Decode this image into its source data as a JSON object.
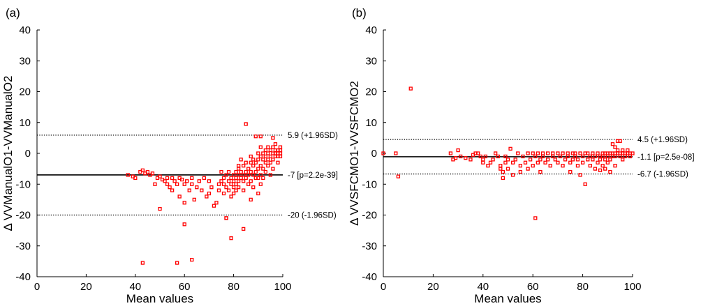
{
  "chart_data": [
    {
      "type": "scatter",
      "panel_label": "(a)",
      "xlabel": "Mean values",
      "ylabel": "Δ VVManualO1-VVManualO2",
      "xlim": [
        0,
        100
      ],
      "ylim": [
        -40,
        40
      ],
      "xticks": [
        "0",
        "20",
        "40",
        "60",
        "80",
        "100"
      ],
      "yticks": [
        "40",
        "30",
        "20",
        "10",
        "0",
        "-10",
        "-20",
        "-30",
        "-40"
      ],
      "grid": false,
      "marker_color": "#ff0000",
      "reference_lines": [
        {
          "label": "5.9 (+1.96SD)",
          "y": 5.9,
          "style": "dotted"
        },
        {
          "label": "-7 [p=2.2e-39]",
          "y": -7.0,
          "style": "solid"
        },
        {
          "label": "-20 (-1.96SD)",
          "y": -20.0,
          "style": "dotted"
        }
      ],
      "points": [
        [
          37,
          -7
        ],
        [
          39,
          -7.5
        ],
        [
          40,
          -8
        ],
        [
          42,
          -6
        ],
        [
          43,
          -5.5
        ],
        [
          44,
          -6.5
        ],
        [
          45,
          -6
        ],
        [
          46,
          -7
        ],
        [
          47,
          -6.5
        ],
        [
          48,
          -10
        ],
        [
          49,
          -8
        ],
        [
          50,
          -7.5
        ],
        [
          50,
          -18
        ],
        [
          51,
          -8.5
        ],
        [
          52,
          -9
        ],
        [
          53,
          -8
        ],
        [
          53,
          -10
        ],
        [
          54,
          -11
        ],
        [
          55,
          -8
        ],
        [
          55,
          -12
        ],
        [
          56,
          -9
        ],
        [
          57,
          -10
        ],
        [
          58,
          -8
        ],
        [
          58,
          -14
        ],
        [
          59,
          -8.5
        ],
        [
          60,
          -10
        ],
        [
          60,
          -16
        ],
        [
          61,
          -9
        ],
        [
          62,
          -12
        ],
        [
          63,
          -8
        ],
        [
          63,
          -10
        ],
        [
          64,
          -15
        ],
        [
          65,
          -11
        ],
        [
          66,
          -9
        ],
        [
          67,
          -12
        ],
        [
          68,
          -8
        ],
        [
          69,
          -14
        ],
        [
          70,
          -13
        ],
        [
          70,
          -9
        ],
        [
          71,
          -11
        ],
        [
          72,
          -17
        ],
        [
          73,
          -16
        ],
        [
          74,
          -10
        ],
        [
          74,
          -12
        ],
        [
          75,
          -6
        ],
        [
          75,
          -9
        ],
        [
          76,
          -8
        ],
        [
          76,
          -10
        ],
        [
          76,
          -13
        ],
        [
          77,
          -7
        ],
        [
          77,
          -11
        ],
        [
          77,
          -21
        ],
        [
          78,
          -9
        ],
        [
          78,
          -12
        ],
        [
          78,
          -6
        ],
        [
          79,
          -8
        ],
        [
          79,
          -10
        ],
        [
          79,
          -14
        ],
        [
          80,
          -7
        ],
        [
          80,
          -9
        ],
        [
          80,
          -11
        ],
        [
          80,
          -13
        ],
        [
          81,
          -6
        ],
        [
          81,
          -8
        ],
        [
          81,
          -10
        ],
        [
          81,
          -12
        ],
        [
          82,
          -5
        ],
        [
          82,
          -7
        ],
        [
          82,
          -9
        ],
        [
          82,
          -4
        ],
        [
          82,
          -11
        ],
        [
          83,
          -6
        ],
        [
          83,
          -8
        ],
        [
          83,
          -2
        ],
        [
          84,
          -7
        ],
        [
          84,
          -9
        ],
        [
          84,
          -12
        ],
        [
          84,
          -4
        ],
        [
          85,
          -3
        ],
        [
          85,
          -6
        ],
        [
          85,
          -8
        ],
        [
          85,
          9.5
        ],
        [
          86,
          -5
        ],
        [
          86,
          -7
        ],
        [
          86,
          -10
        ],
        [
          87,
          -3
        ],
        [
          87,
          -6
        ],
        [
          87,
          -9
        ],
        [
          87,
          -1
        ],
        [
          88,
          -4
        ],
        [
          88,
          -7
        ],
        [
          88,
          -2
        ],
        [
          88,
          -11
        ],
        [
          89,
          -3
        ],
        [
          89,
          -6
        ],
        [
          89,
          -8
        ],
        [
          89,
          5.5
        ],
        [
          90,
          -2
        ],
        [
          90,
          -5
        ],
        [
          90,
          -8
        ],
        [
          90,
          0
        ],
        [
          90,
          -13
        ],
        [
          91,
          -1
        ],
        [
          91,
          -4
        ],
        [
          91,
          -7
        ],
        [
          91,
          2
        ],
        [
          91,
          -10
        ],
        [
          92,
          -2
        ],
        [
          92,
          -5
        ],
        [
          92,
          0
        ],
        [
          92,
          -8
        ],
        [
          93,
          -1
        ],
        [
          93,
          -3
        ],
        [
          93,
          1
        ],
        [
          93,
          -6
        ],
        [
          94,
          0
        ],
        [
          94,
          -2
        ],
        [
          94,
          2
        ],
        [
          94,
          -4
        ],
        [
          95,
          -1
        ],
        [
          95,
          1
        ],
        [
          95,
          -3
        ],
        [
          95,
          -7
        ],
        [
          96,
          0
        ],
        [
          96,
          2
        ],
        [
          96,
          -2
        ],
        [
          96,
          -5
        ],
        [
          97,
          0
        ],
        [
          97,
          1
        ],
        [
          97,
          -1
        ],
        [
          97,
          3
        ],
        [
          98,
          0
        ],
        [
          98,
          -1
        ],
        [
          98,
          1
        ],
        [
          98,
          -3
        ],
        [
          99,
          0
        ],
        [
          99,
          1
        ],
        [
          99,
          2
        ],
        [
          99,
          -1
        ],
        [
          84,
          -24.5
        ],
        [
          77,
          -21
        ],
        [
          79,
          -27.5
        ],
        [
          60,
          -23
        ],
        [
          57,
          -35.5
        ],
        [
          63,
          -34.5
        ],
        [
          43,
          -35.5
        ],
        [
          91,
          5.5
        ],
        [
          96,
          5
        ],
        [
          87,
          -15
        ]
      ]
    },
    {
      "type": "scatter",
      "panel_label": "(b)",
      "xlabel": "Mean values",
      "ylabel": "Δ VVSFCMO1-VVSFCMO2",
      "xlim": [
        0,
        100
      ],
      "ylim": [
        -40,
        40
      ],
      "xticks": [
        "0",
        "20",
        "40",
        "60",
        "80",
        "100"
      ],
      "yticks": [
        "40",
        "30",
        "20",
        "10",
        "0",
        "-10",
        "-20",
        "-30",
        "-40"
      ],
      "grid": false,
      "marker_color": "#ff0000",
      "reference_lines": [
        {
          "label": "4.5 (+1.96SD)",
          "y": 4.5,
          "style": "dotted"
        },
        {
          "label": "-1.1 [p=2.5e-08]",
          "y": -1.1,
          "style": "solid"
        },
        {
          "label": "-6.7 (-1.96SD)",
          "y": -6.7,
          "style": "dotted"
        }
      ],
      "points": [
        [
          0,
          0
        ],
        [
          5,
          0
        ],
        [
          6,
          -7.5
        ],
        [
          11,
          21
        ],
        [
          27,
          0
        ],
        [
          28,
          -2
        ],
        [
          29,
          -1.5
        ],
        [
          30,
          1
        ],
        [
          31,
          -1
        ],
        [
          33,
          -1.5
        ],
        [
          35,
          -2
        ],
        [
          36,
          -0.5
        ],
        [
          37,
          0
        ],
        [
          38,
          0
        ],
        [
          39,
          -1
        ],
        [
          40,
          -2
        ],
        [
          40,
          -3
        ],
        [
          41,
          -1
        ],
        [
          42,
          -4
        ],
        [
          43,
          -3
        ],
        [
          44,
          -2
        ],
        [
          45,
          0
        ],
        [
          46,
          -1
        ],
        [
          47,
          -4
        ],
        [
          47,
          -5
        ],
        [
          48,
          -6
        ],
        [
          48,
          -8
        ],
        [
          49,
          -3
        ],
        [
          49,
          -1
        ],
        [
          50,
          -2
        ],
        [
          50,
          -5
        ],
        [
          51,
          1.5
        ],
        [
          52,
          -7
        ],
        [
          52,
          -3
        ],
        [
          53,
          -2
        ],
        [
          54,
          0
        ],
        [
          55,
          -4
        ],
        [
          55,
          -6
        ],
        [
          56,
          -1
        ],
        [
          57,
          -3
        ],
        [
          58,
          0
        ],
        [
          58,
          -5
        ],
        [
          59,
          -2
        ],
        [
          60,
          0
        ],
        [
          60,
          -4
        ],
        [
          61,
          -1
        ],
        [
          61,
          -21
        ],
        [
          62,
          -3
        ],
        [
          62,
          0
        ],
        [
          63,
          -2
        ],
        [
          63,
          -6
        ],
        [
          64,
          0
        ],
        [
          64,
          -1
        ],
        [
          65,
          -3
        ],
        [
          66,
          0
        ],
        [
          66,
          -2
        ],
        [
          67,
          -4
        ],
        [
          68,
          -1
        ],
        [
          68,
          0
        ],
        [
          69,
          -2
        ],
        [
          70,
          0
        ],
        [
          70,
          -3
        ],
        [
          71,
          -1
        ],
        [
          72,
          0
        ],
        [
          72,
          -4
        ],
        [
          73,
          -2
        ],
        [
          74,
          0
        ],
        [
          74,
          -1
        ],
        [
          75,
          -3
        ],
        [
          75,
          -6
        ],
        [
          76,
          0
        ],
        [
          76,
          -2
        ],
        [
          77,
          0
        ],
        [
          77,
          -1
        ],
        [
          78,
          -2
        ],
        [
          78,
          -4
        ],
        [
          79,
          0
        ],
        [
          79,
          -7
        ],
        [
          80,
          -1
        ],
        [
          80,
          -3
        ],
        [
          81,
          0
        ],
        [
          81,
          -10
        ],
        [
          82,
          -2
        ],
        [
          82,
          0
        ],
        [
          83,
          -1
        ],
        [
          83,
          -4
        ],
        [
          84,
          0
        ],
        [
          84,
          -2
        ],
        [
          85,
          -1
        ],
        [
          85,
          -5
        ],
        [
          86,
          0
        ],
        [
          86,
          -3
        ],
        [
          87,
          -1
        ],
        [
          87,
          -2
        ],
        [
          87,
          -5.5
        ],
        [
          88,
          0
        ],
        [
          88,
          -1
        ],
        [
          88,
          -4
        ],
        [
          89,
          0
        ],
        [
          89,
          -2
        ],
        [
          89,
          -5
        ],
        [
          90,
          0
        ],
        [
          90,
          -1
        ],
        [
          90,
          -3
        ],
        [
          91,
          0
        ],
        [
          91,
          -2
        ],
        [
          91,
          -6
        ],
        [
          92,
          0
        ],
        [
          92,
          -1
        ],
        [
          92,
          3
        ],
        [
          93,
          0
        ],
        [
          93,
          2
        ],
        [
          93,
          -1
        ],
        [
          93,
          -4
        ],
        [
          94,
          0
        ],
        [
          94,
          4
        ],
        [
          94,
          1
        ],
        [
          95,
          0
        ],
        [
          95,
          -1
        ],
        [
          95,
          4
        ],
        [
          96,
          0
        ],
        [
          96,
          1
        ],
        [
          96,
          -2
        ],
        [
          97,
          0
        ],
        [
          97,
          -1
        ],
        [
          98,
          0
        ],
        [
          98,
          1
        ],
        [
          99,
          0
        ],
        [
          99,
          -1
        ],
        [
          100,
          0
        ]
      ]
    }
  ]
}
